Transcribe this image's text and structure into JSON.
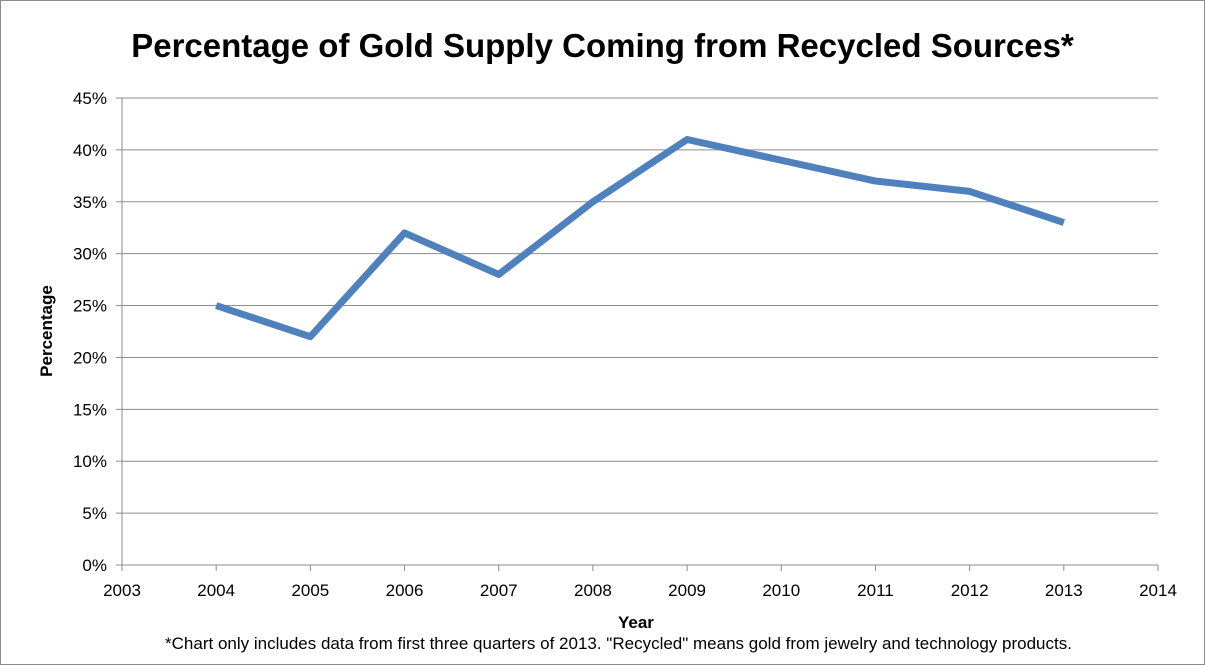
{
  "chart_data": {
    "type": "line",
    "title": "Percentage of Gold Supply Coming from Recycled Sources*",
    "xlabel": "Year",
    "ylabel": "Percentage",
    "footnote": "*Chart only includes data from first three quarters of 2013. \"Recycled\" means gold from jewelry and technology products.",
    "xlim": [
      2003,
      2014
    ],
    "ylim": [
      0,
      45
    ],
    "x_ticks": [
      "2003",
      "2004",
      "2005",
      "2006",
      "2007",
      "2008",
      "2009",
      "2010",
      "2011",
      "2012",
      "2013",
      "2014"
    ],
    "y_ticks": [
      "0%",
      "5%",
      "10%",
      "15%",
      "20%",
      "25%",
      "30%",
      "35%",
      "40%",
      "45%"
    ],
    "grid": true,
    "legend": "none",
    "series": [
      {
        "color": "#4f81bd",
        "x": [
          2004,
          2005,
          2006,
          2007,
          2008,
          2009,
          2010,
          2011,
          2012,
          2013
        ],
        "values": [
          25,
          22,
          32,
          28,
          35,
          41,
          39,
          37,
          36,
          33
        ]
      }
    ]
  }
}
